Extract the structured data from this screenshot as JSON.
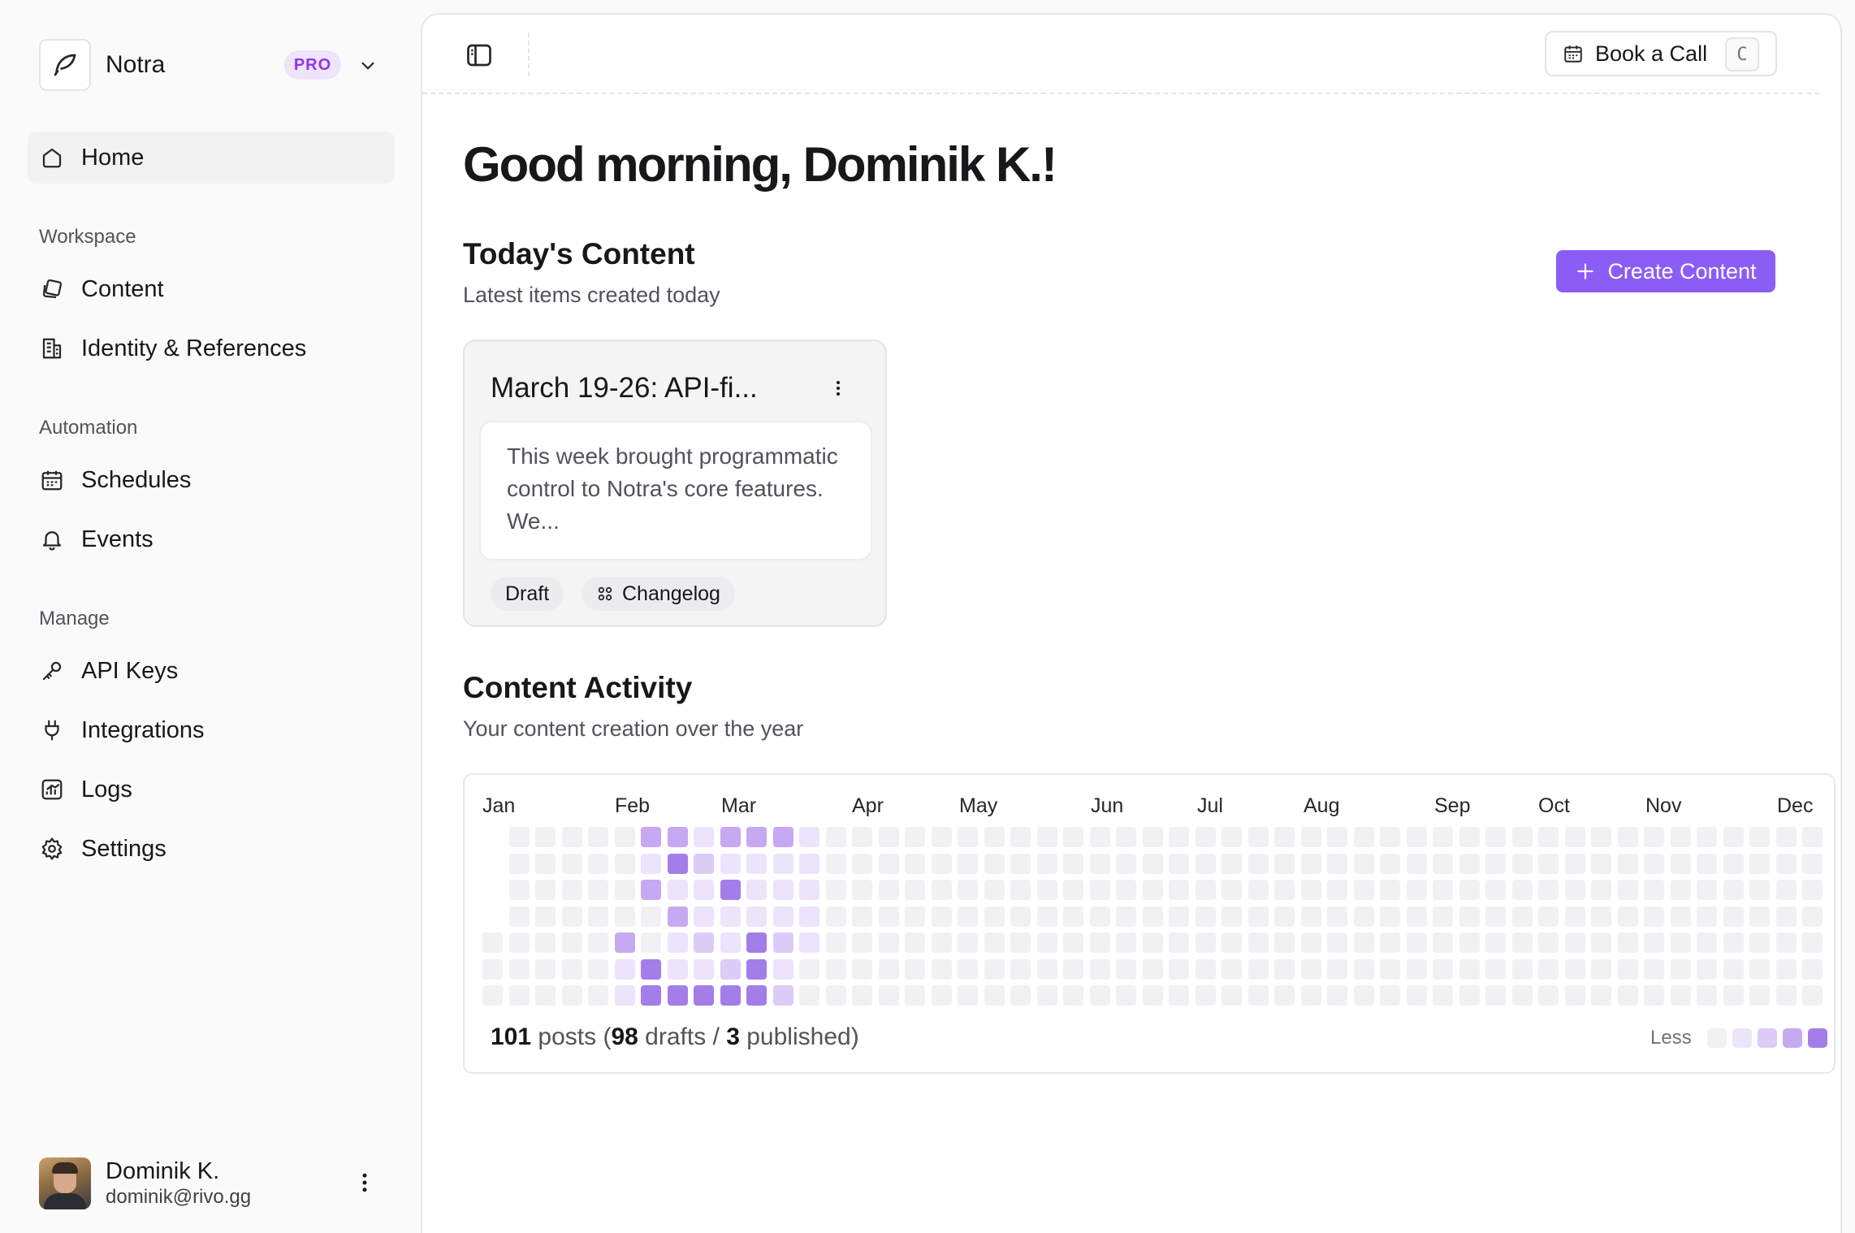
{
  "brand": {
    "name": "Notra",
    "badge": "PRO"
  },
  "nav": {
    "home": "Home",
    "sections": [
      {
        "title": "Workspace",
        "items": [
          "Content",
          "Identity & References"
        ]
      },
      {
        "title": "Automation",
        "items": [
          "Schedules",
          "Events"
        ]
      },
      {
        "title": "Manage",
        "items": [
          "API Keys",
          "Integrations",
          "Logs",
          "Settings"
        ]
      }
    ]
  },
  "user": {
    "name": "Dominik K.",
    "email": "dominik@rivo.gg"
  },
  "topbar": {
    "book_label": "Book a Call",
    "book_shortcut": "C"
  },
  "greeting": "Good morning, Dominik K.!",
  "today": {
    "title": "Today's Content",
    "subtitle": "Latest items created today",
    "create_label": "Create Content",
    "card": {
      "title": "March 19-26: API-fi...",
      "excerpt": "This week brought programmatic control to Notra's core features. We...",
      "status": "Draft",
      "type": "Changelog"
    }
  },
  "activity": {
    "title": "Content Activity",
    "subtitle": "Your content creation over the year",
    "months": [
      "Jan",
      "Feb",
      "Mar",
      "Apr",
      "May",
      "Jun",
      "Jul",
      "Aug",
      "Sep",
      "Oct",
      "Nov",
      "Dec"
    ],
    "summary": {
      "posts": "101",
      "posts_label": "posts",
      "drafts": "98",
      "drafts_label": "drafts",
      "published": "3",
      "published_label": "published"
    },
    "legend_less": "Less",
    "levels": [
      "#f1f1f3",
      "#ece4fb",
      "#ddcbf8",
      "#c6a9f2",
      "#a37ee9"
    ],
    "weeks": [
      [
        null,
        null,
        null,
        null,
        0,
        0,
        0
      ],
      [
        0,
        0,
        0,
        0,
        0,
        0,
        0
      ],
      [
        0,
        0,
        0,
        0,
        0,
        0,
        0
      ],
      [
        0,
        0,
        0,
        0,
        0,
        0,
        0
      ],
      [
        0,
        0,
        0,
        0,
        0,
        0,
        0
      ],
      [
        0,
        0,
        0,
        0,
        3,
        1,
        1
      ],
      [
        3,
        1,
        3,
        0,
        0,
        4,
        4
      ],
      [
        3,
        4,
        1,
        3,
        1,
        1,
        4
      ],
      [
        1,
        2,
        1,
        1,
        2,
        1,
        4
      ],
      [
        3,
        1,
        4,
        1,
        1,
        2,
        4
      ],
      [
        3,
        1,
        1,
        1,
        4,
        4,
        4
      ],
      [
        3,
        1,
        1,
        1,
        2,
        1,
        2
      ],
      [
        1,
        1,
        1,
        1,
        1,
        0,
        0
      ]
    ]
  }
}
